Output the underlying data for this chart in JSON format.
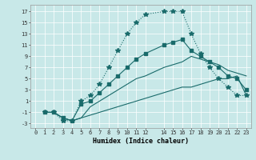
{
  "xlabel": "Humidex (Indice chaleur)",
  "bg_color": "#c8e8e8",
  "grid_color": "#ffffff",
  "line_color": "#1a6b6b",
  "xlim": [
    -0.5,
    23.5
  ],
  "ylim": [
    -3.8,
    18.2
  ],
  "xticks": [
    0,
    1,
    2,
    3,
    4,
    5,
    6,
    7,
    8,
    9,
    10,
    11,
    12,
    14,
    15,
    16,
    17,
    18,
    19,
    20,
    21,
    22,
    23
  ],
  "yticks": [
    -3,
    -1,
    1,
    3,
    5,
    7,
    9,
    11,
    13,
    15,
    17
  ],
  "line1_x": [
    1,
    2,
    3,
    4,
    5,
    6,
    7,
    8,
    9,
    10,
    11,
    12,
    14,
    15,
    16,
    17,
    18,
    19,
    20,
    21,
    22,
    23
  ],
  "line1_y": [
    -1,
    -1,
    -2.5,
    -2.5,
    1,
    2,
    4,
    7,
    10,
    13,
    15,
    16.5,
    17,
    17,
    17,
    13,
    9.5,
    7,
    5,
    3.5,
    2,
    2
  ],
  "line2_x": [
    1,
    2,
    3,
    4,
    5,
    6,
    7,
    8,
    9,
    10,
    11,
    12,
    14,
    15,
    16,
    17,
    18,
    19,
    20,
    21,
    22,
    23
  ],
  "line2_y": [
    -1,
    -1,
    -2,
    -2.5,
    0.5,
    1,
    2.5,
    4,
    5.5,
    7,
    8.5,
    9.5,
    11,
    11.5,
    12,
    10,
    9,
    8,
    7,
    5.5,
    5,
    3
  ],
  "line3_x": [
    1,
    2,
    3,
    4,
    5,
    6,
    7,
    8,
    9,
    10,
    11,
    12,
    14,
    15,
    16,
    17,
    18,
    19,
    20,
    21,
    22,
    23
  ],
  "line3_y": [
    -1,
    -1,
    -2,
    -2.5,
    -2,
    0,
    1,
    2,
    3,
    4,
    5,
    5.5,
    7,
    7.5,
    8,
    9,
    8.5,
    8,
    7.5,
    6.5,
    6,
    5.5
  ],
  "line4_x": [
    1,
    2,
    3,
    4,
    5,
    6,
    7,
    8,
    9,
    10,
    11,
    12,
    14,
    15,
    16,
    17,
    18,
    19,
    20,
    21,
    22,
    23
  ],
  "line4_y": [
    -1,
    -1,
    -2,
    -2.5,
    -2,
    -1.5,
    -1,
    -0.5,
    0,
    0.5,
    1,
    1.5,
    2.5,
    3,
    3.5,
    3.5,
    4,
    4.5,
    5,
    5,
    5.5,
    2
  ]
}
